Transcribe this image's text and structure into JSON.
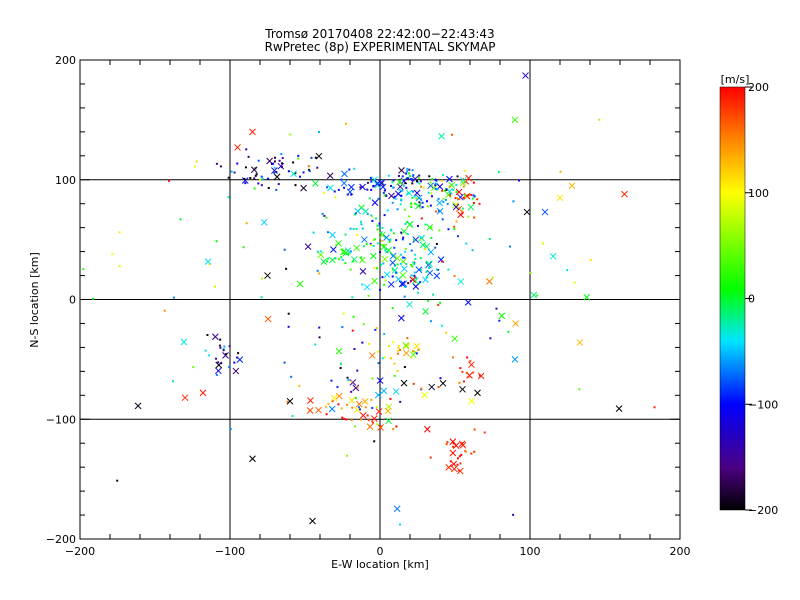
{
  "chart_data": {
    "type": "scatter",
    "title": "Tromsø 20170408 22:42:00−22:43:43",
    "subtitle": "RwPretec (8p) EXPERIMENTAL SKYMAP",
    "xlabel": "E-W location [km]",
    "ylabel": "N-S location [km]",
    "xlim": [
      -200,
      200
    ],
    "ylim": [
      -200,
      200
    ],
    "x_ticks": [
      -200,
      -100,
      0,
      100,
      200
    ],
    "y_ticks": [
      -200,
      -100,
      0,
      100,
      200
    ],
    "grid_lines": [
      -100,
      0,
      100
    ],
    "colorbar": {
      "label": "[m/s]",
      "range": [
        -200,
        200
      ],
      "ticks": [
        -200,
        -100,
        0,
        100,
        200
      ],
      "colormap": "black-purple-blue-cyan-green-yellow-orange-red"
    },
    "clusters": [
      {
        "x": -68,
        "y": 108,
        "sx": 18,
        "sy": 8,
        "v": -150,
        "vs": 60,
        "n": 60
      },
      {
        "x": -5,
        "y": 95,
        "sx": 18,
        "sy": 6,
        "v": -110,
        "vs": 40,
        "n": 40
      },
      {
        "x": 25,
        "y": 98,
        "sx": 14,
        "sy": 6,
        "v": -80,
        "vs": 60,
        "n": 50
      },
      {
        "x": 55,
        "y": 80,
        "sx": 8,
        "sy": 8,
        "v": 180,
        "vs": 25,
        "n": 30
      },
      {
        "x": 30,
        "y": 85,
        "sx": 18,
        "sy": 8,
        "v": -30,
        "vs": 60,
        "n": 60
      },
      {
        "x": 0,
        "y": 55,
        "sx": 25,
        "sy": 15,
        "v": -30,
        "vs": 60,
        "n": 110
      },
      {
        "x": 20,
        "y": 25,
        "sx": 15,
        "sy": 10,
        "v": -40,
        "vs": 40,
        "n": 70
      },
      {
        "x": -25,
        "y": 35,
        "sx": 10,
        "sy": 5,
        "v": 5,
        "vs": 20,
        "n": 25
      },
      {
        "x": -105,
        "y": -45,
        "sx": 6,
        "sy": 8,
        "v": -140,
        "vs": 60,
        "n": 25
      },
      {
        "x": 15,
        "y": -45,
        "sx": 10,
        "sy": 6,
        "v": 120,
        "vs": 40,
        "n": 25
      },
      {
        "x": 0,
        "y": -70,
        "sx": 25,
        "sy": 15,
        "v": -120,
        "vs": 80,
        "n": 30
      },
      {
        "x": -30,
        "y": -90,
        "sx": 15,
        "sy": 10,
        "v": 170,
        "vs": 40,
        "n": 25
      },
      {
        "x": 50,
        "y": -130,
        "sx": 8,
        "sy": 10,
        "v": 190,
        "vs": 15,
        "n": 30
      },
      {
        "x": 60,
        "y": -65,
        "sx": 8,
        "sy": 10,
        "v": 180,
        "vs": 20,
        "n": 15
      },
      {
        "x": -5,
        "y": -95,
        "sx": 10,
        "sy": 8,
        "v": 150,
        "vs": 40,
        "n": 20
      },
      {
        "x": 0,
        "y": 20,
        "sx": 80,
        "sy": 80,
        "v": 0,
        "vs": 110,
        "n": 140
      }
    ],
    "points": [
      {
        "x": -85,
        "y": 140,
        "v": 190,
        "m": "x"
      },
      {
        "x": -95,
        "y": 127,
        "v": 190,
        "m": "x"
      },
      {
        "x": -75,
        "y": 20,
        "v": -200,
        "m": "x"
      },
      {
        "x": -85,
        "y": -133,
        "v": -200,
        "m": "x"
      },
      {
        "x": -45,
        "y": -185,
        "v": -200,
        "m": "x"
      },
      {
        "x": 97,
        "y": 187,
        "v": -120,
        "m": "x"
      },
      {
        "x": 98,
        "y": 73,
        "v": -200,
        "m": "x"
      },
      {
        "x": 163,
        "y": 88,
        "v": 185,
        "m": "x"
      },
      {
        "x": 128,
        "y": 95,
        "v": 130,
        "m": "x"
      },
      {
        "x": 120,
        "y": 85,
        "v": 110,
        "m": "x"
      },
      {
        "x": -130,
        "y": -82,
        "v": 185,
        "m": "x"
      },
      {
        "x": -118,
        "y": -78,
        "v": 190,
        "m": "x"
      },
      {
        "x": 90,
        "y": -50,
        "v": -60,
        "m": "x"
      },
      {
        "x": 183,
        "y": -90,
        "v": 190,
        "m": "dot"
      },
      {
        "x": -133,
        "y": 67,
        "v": 0,
        "m": "dot"
      },
      {
        "x": -60,
        "y": -85,
        "v": -200,
        "m": "x"
      },
      {
        "x": 42,
        "y": -70,
        "v": -200,
        "m": "x"
      },
      {
        "x": 55,
        "y": -75,
        "v": -200,
        "m": "x"
      },
      {
        "x": 65,
        "y": -78,
        "v": -200,
        "m": "x"
      },
      {
        "x": 110,
        "y": 73,
        "v": -80,
        "m": "x"
      },
      {
        "x": 90,
        "y": 150,
        "v": 30,
        "m": "x"
      }
    ]
  }
}
